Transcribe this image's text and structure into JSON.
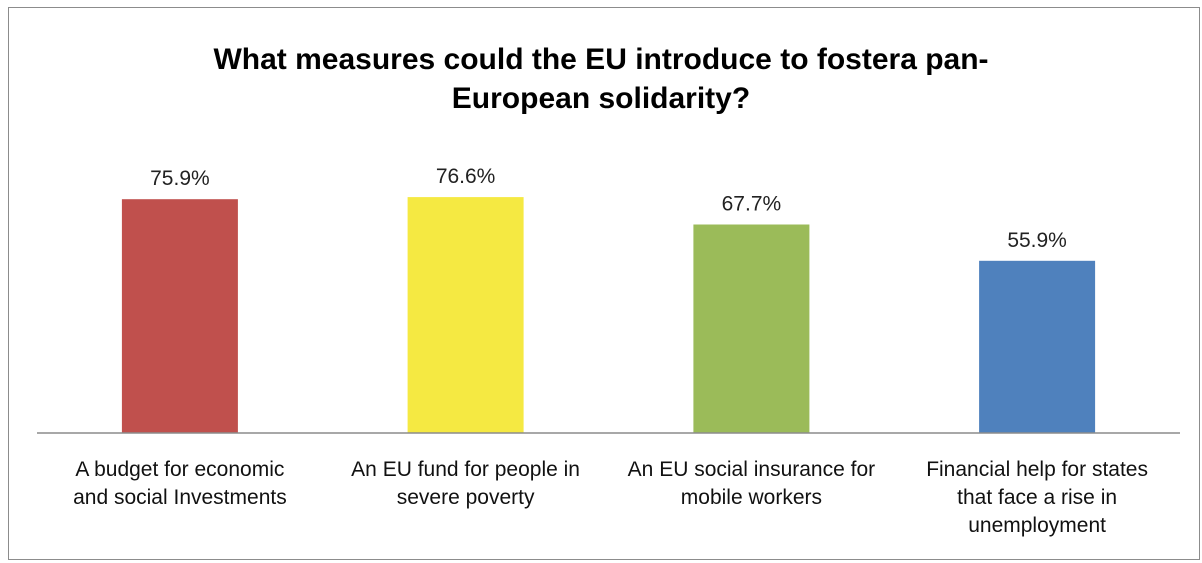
{
  "chart_data": {
    "type": "bar",
    "title_lines": [
      "What measures could the EU introduce to fostera pan-",
      "European solidarity?"
    ],
    "categories": [
      "A budget for economic and social Investments",
      "An EU fund for people in severe poverty",
      "An EU social insurance for mobile workers",
      "Financial help for states that face a rise in unemployment"
    ],
    "category_label_lines": [
      [
        "A budget for economic",
        "and social Investments"
      ],
      [
        "An EU fund for people in",
        "severe poverty"
      ],
      [
        "An EU social insurance for",
        "mobile workers"
      ],
      [
        "Financial help for states",
        "that face a rise in",
        "unemployment"
      ]
    ],
    "values": [
      75.9,
      76.6,
      67.7,
      55.9
    ],
    "value_labels": [
      "75.9%",
      "76.6%",
      "67.7%",
      "55.9%"
    ],
    "colors": [
      "#c0504d",
      "#f5e942",
      "#9bbb59",
      "#4f81bd"
    ],
    "xlabel": "",
    "ylabel": "",
    "ylim": [
      0,
      100
    ],
    "grid": false,
    "legend": "none"
  }
}
